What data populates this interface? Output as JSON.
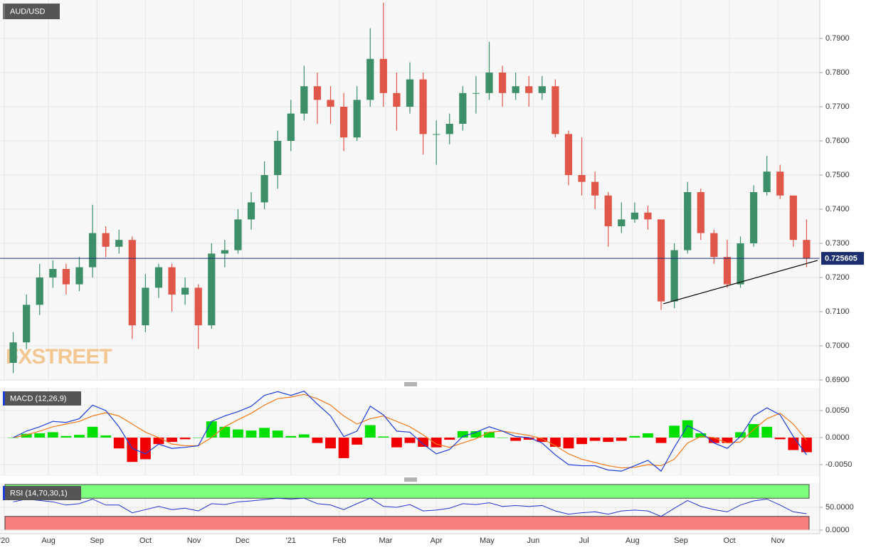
{
  "chart_data": [
    {
      "type": "candlestick",
      "title": "AUD/USD",
      "watermark": "FXSTREET",
      "grid": true,
      "up_color": "#3c8f68",
      "down_color": "#e0574a",
      "xlim": [
        0,
        372
      ],
      "xticks": [
        {
          "value": 2,
          "label": "'20"
        },
        {
          "value": 22,
          "label": "Aug"
        },
        {
          "value": 44,
          "label": "Sep"
        },
        {
          "value": 66,
          "label": "Oct"
        },
        {
          "value": 88,
          "label": "Nov"
        },
        {
          "value": 110,
          "label": "Dec"
        },
        {
          "value": 132,
          "label": "'21"
        },
        {
          "value": 154,
          "label": "Feb"
        },
        {
          "value": 175,
          "label": "Mar"
        },
        {
          "value": 198,
          "label": "Apr"
        },
        {
          "value": 221,
          "label": "May"
        },
        {
          "value": 242,
          "label": "Jun"
        },
        {
          "value": 265,
          "label": "Jul"
        },
        {
          "value": 287,
          "label": "Aug"
        },
        {
          "value": 309,
          "label": "Sep"
        },
        {
          "value": 331,
          "label": "Oct"
        },
        {
          "value": 353,
          "label": "Nov"
        }
      ],
      "ylim": [
        0.69,
        0.80125
      ],
      "yticks": [
        {
          "value": 0.69,
          "label": "0.6900"
        },
        {
          "value": 0.7,
          "label": "0.7000"
        },
        {
          "value": 0.71,
          "label": "0.7100"
        },
        {
          "value": 0.72,
          "label": "0.7200"
        },
        {
          "value": 0.73,
          "label": "0.7300"
        },
        {
          "value": 0.74,
          "label": "0.7400"
        },
        {
          "value": 0.75,
          "label": "0.7500"
        },
        {
          "value": 0.76,
          "label": "0.7600"
        },
        {
          "value": 0.77,
          "label": "0.7700"
        },
        {
          "value": 0.78,
          "label": "0.7800"
        },
        {
          "value": 0.79,
          "label": "0.7900"
        }
      ],
      "last_price": {
        "value": 0.725605,
        "label": "0.725605",
        "color": "#1c2e6e"
      },
      "trendline": {
        "x": [
          301,
          371
        ],
        "y": [
          0.7123,
          0.725
        ],
        "color": "#000000"
      },
      "x": [
        6,
        12,
        18,
        24,
        30,
        36,
        42,
        48,
        54,
        60,
        66,
        72,
        78,
        84,
        90,
        96,
        102,
        108,
        114,
        120,
        126,
        132,
        138,
        144,
        150,
        156,
        162,
        168,
        174,
        180,
        186,
        192,
        198,
        204,
        210,
        216,
        222,
        228,
        234,
        240,
        246,
        252,
        258,
        264,
        270,
        276,
        282,
        288,
        294,
        300,
        306,
        312,
        318,
        324,
        330,
        336,
        342,
        348,
        354,
        360,
        366
      ],
      "open": [
        0.695,
        0.701,
        0.712,
        0.72,
        0.7225,
        0.718,
        0.723,
        0.733,
        0.729,
        0.731,
        0.706,
        0.717,
        0.723,
        0.715,
        0.717,
        0.706,
        0.727,
        0.728,
        0.737,
        0.742,
        0.75,
        0.76,
        0.768,
        0.776,
        0.772,
        0.77,
        0.761,
        0.772,
        0.784,
        0.774,
        0.77,
        0.778,
        0.762,
        0.762,
        0.765,
        0.774,
        0.774,
        0.78,
        0.774,
        0.776,
        0.774,
        0.776,
        0.762,
        0.75,
        0.748,
        0.744,
        0.735,
        0.737,
        0.739,
        0.737,
        0.713,
        0.728,
        0.745,
        0.733,
        0.726,
        0.718,
        0.73,
        0.745,
        0.751,
        0.744,
        0.731
      ],
      "high": [
        0.704,
        0.715,
        0.724,
        0.725,
        0.724,
        0.726,
        0.7413,
        0.735,
        0.734,
        0.732,
        0.721,
        0.724,
        0.724,
        0.72,
        0.718,
        0.73,
        0.731,
        0.74,
        0.745,
        0.754,
        0.763,
        0.772,
        0.782,
        0.78,
        0.776,
        0.774,
        0.776,
        0.793,
        0.8005,
        0.78,
        0.783,
        0.78,
        0.766,
        0.768,
        0.776,
        0.779,
        0.789,
        0.782,
        0.78,
        0.779,
        0.779,
        0.778,
        0.763,
        0.761,
        0.751,
        0.745,
        0.742,
        0.742,
        0.741,
        0.737,
        0.73,
        0.748,
        0.746,
        0.734,
        0.731,
        0.732,
        0.747,
        0.7556,
        0.753,
        0.744,
        0.737
      ],
      "low": [
        0.692,
        0.699,
        0.709,
        0.717,
        0.715,
        0.716,
        0.72,
        0.726,
        0.727,
        0.702,
        0.704,
        0.714,
        0.71,
        0.712,
        0.6991,
        0.705,
        0.723,
        0.727,
        0.734,
        0.74,
        0.746,
        0.757,
        0.766,
        0.765,
        0.765,
        0.757,
        0.76,
        0.77,
        0.77,
        0.763,
        0.768,
        0.756,
        0.753,
        0.759,
        0.763,
        0.768,
        0.772,
        0.77,
        0.772,
        0.77,
        0.772,
        0.761,
        0.747,
        0.744,
        0.74,
        0.729,
        0.733,
        0.736,
        0.734,
        0.7105,
        0.711,
        0.727,
        0.731,
        0.724,
        0.717,
        0.717,
        0.729,
        0.744,
        0.743,
        0.729,
        0.723
      ],
      "close": [
        0.701,
        0.712,
        0.72,
        0.7225,
        0.718,
        0.723,
        0.733,
        0.729,
        0.731,
        0.706,
        0.717,
        0.723,
        0.715,
        0.717,
        0.706,
        0.727,
        0.728,
        0.737,
        0.742,
        0.75,
        0.76,
        0.768,
        0.776,
        0.772,
        0.77,
        0.761,
        0.772,
        0.784,
        0.774,
        0.77,
        0.778,
        0.762,
        0.762,
        0.765,
        0.774,
        0.774,
        0.78,
        0.774,
        0.776,
        0.774,
        0.776,
        0.762,
        0.75,
        0.748,
        0.744,
        0.735,
        0.737,
        0.739,
        0.737,
        0.713,
        0.728,
        0.745,
        0.733,
        0.726,
        0.718,
        0.73,
        0.745,
        0.751,
        0.744,
        0.731,
        0.7256
      ]
    },
    {
      "type": "macd",
      "title": "MACD (12,26,9)",
      "xlim": [
        0,
        372
      ],
      "ylim": [
        -0.00697,
        0.00921
      ],
      "yticks": [
        {
          "value": -0.005,
          "label": "-0.0050"
        },
        {
          "value": 0,
          "label": "0.0000"
        },
        {
          "value": 0.005,
          "label": "0.0050"
        }
      ],
      "macd_color": "#1f3fd6",
      "signal_color": "#f07a1a",
      "up_color": "#00e000",
      "down_color": "#f00000",
      "x": [
        6,
        12,
        18,
        24,
        30,
        36,
        42,
        48,
        54,
        60,
        66,
        72,
        78,
        84,
        90,
        96,
        102,
        108,
        114,
        120,
        126,
        132,
        138,
        144,
        150,
        156,
        162,
        168,
        174,
        180,
        186,
        192,
        198,
        204,
        210,
        216,
        222,
        228,
        234,
        240,
        246,
        252,
        258,
        264,
        270,
        276,
        282,
        288,
        294,
        300,
        306,
        312,
        318,
        324,
        330,
        336,
        342,
        348,
        354,
        360,
        366
      ],
      "macd": [
        0.0,
        0.0012,
        0.002,
        0.003,
        0.0028,
        0.0035,
        0.006,
        0.005,
        0.002,
        -0.002,
        -0.003,
        -0.0012,
        -0.002,
        -0.0018,
        -0.0015,
        0.003,
        0.004,
        0.0048,
        0.0058,
        0.0078,
        0.0085,
        0.0078,
        0.0086,
        0.0062,
        0.004,
        0.0002,
        0.0012,
        0.0058,
        0.0042,
        0.0012,
        0.001,
        -0.0012,
        -0.003,
        -0.0022,
        0.0002,
        0.001,
        0.002,
        0.0012,
        0.0002,
        0.0,
        -0.001,
        -0.0032,
        -0.005,
        -0.0052,
        -0.0052,
        -0.006,
        -0.0062,
        -0.0052,
        -0.0042,
        -0.0062,
        -0.0018,
        0.0022,
        0.001,
        -0.001,
        -0.002,
        0.0002,
        0.004,
        0.0055,
        0.0042,
        0.0002,
        -0.0032
      ],
      "signal": [
        0.0,
        0.0005,
        0.0012,
        0.002,
        0.0025,
        0.003,
        0.004,
        0.0046,
        0.004,
        0.0025,
        0.001,
        0.0,
        -0.0012,
        -0.0015,
        -0.0015,
        0.0,
        0.002,
        0.0033,
        0.0045,
        0.006,
        0.0072,
        0.0075,
        0.008,
        0.0072,
        0.006,
        0.004,
        0.0025,
        0.0035,
        0.004,
        0.003,
        0.002,
        0.0005,
        -0.0012,
        -0.0018,
        -0.001,
        -0.0002,
        0.001,
        0.0012,
        0.0008,
        0.0004,
        -0.0002,
        -0.0015,
        -0.003,
        -0.004,
        -0.0046,
        -0.0052,
        -0.0056,
        -0.0055,
        -0.005,
        -0.0052,
        -0.004,
        -0.001,
        0.0002,
        0.0,
        -0.001,
        -0.0008,
        0.0015,
        0.0035,
        0.0045,
        0.0025,
        -0.0005
      ],
      "histogram": [
        0.0,
        0.0007,
        0.0008,
        0.001,
        0.0003,
        0.0005,
        0.002,
        0.0004,
        -0.002,
        -0.0045,
        -0.004,
        -0.0012,
        -0.0008,
        -0.0003,
        0.0,
        0.003,
        0.002,
        0.0015,
        0.0013,
        0.0018,
        0.0013,
        0.0003,
        0.0006,
        -0.001,
        -0.002,
        -0.0038,
        -0.0013,
        0.0023,
        0.0002,
        -0.0018,
        -0.001,
        -0.0017,
        -0.0018,
        -0.0004,
        0.0012,
        0.0012,
        0.001,
        0.0,
        -0.0006,
        -0.0004,
        -0.0008,
        -0.0017,
        -0.002,
        -0.0012,
        -0.0006,
        -0.0008,
        -0.0006,
        0.0003,
        0.0008,
        -0.001,
        0.0022,
        0.0032,
        0.0008,
        -0.001,
        -0.001,
        0.001,
        0.0025,
        0.002,
        -0.0003,
        -0.0023,
        -0.0027
      ]
    },
    {
      "type": "rsi",
      "title": "RSI (14,70,30,1)",
      "xlim": [
        0,
        372
      ],
      "ylim": [
        0,
        100
      ],
      "yticks": [
        {
          "value": 0,
          "label": "0.0000"
        },
        {
          "value": 50,
          "label": "50.0000"
        }
      ],
      "overbought": 70,
      "oversold": 30,
      "overbought_color": "#7dff7d",
      "oversold_color": "#f77f7f",
      "color": "#2233cc",
      "x": [
        6,
        12,
        18,
        24,
        30,
        36,
        42,
        48,
        54,
        60,
        66,
        72,
        78,
        84,
        90,
        96,
        102,
        108,
        114,
        120,
        126,
        132,
        138,
        144,
        150,
        156,
        162,
        168,
        174,
        180,
        186,
        192,
        198,
        204,
        210,
        216,
        222,
        228,
        234,
        240,
        246,
        252,
        258,
        264,
        270,
        276,
        282,
        288,
        294,
        300,
        306,
        312,
        318,
        324,
        330,
        336,
        342,
        348,
        354,
        360,
        366
      ],
      "values": [
        62,
        68,
        65,
        62,
        55,
        58,
        68,
        55,
        55,
        38,
        45,
        52,
        45,
        48,
        42,
        58,
        56,
        62,
        64,
        67,
        70,
        68,
        70,
        58,
        55,
        45,
        58,
        70,
        52,
        50,
        56,
        42,
        44,
        48,
        58,
        56,
        60,
        52,
        54,
        52,
        54,
        42,
        35,
        38,
        40,
        35,
        42,
        44,
        42,
        30,
        48,
        65,
        52,
        45,
        40,
        55,
        64,
        68,
        55,
        40,
        36
      ]
    }
  ]
}
